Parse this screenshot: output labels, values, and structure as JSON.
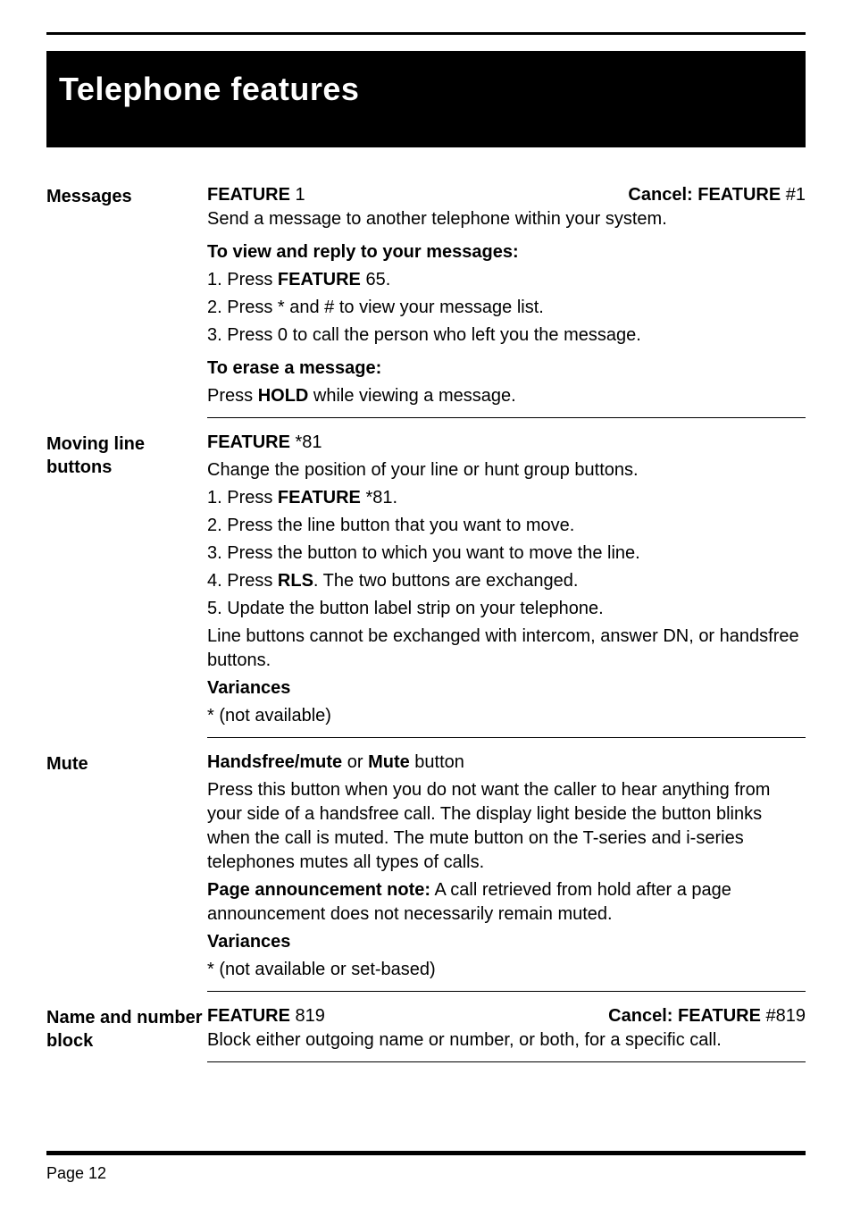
{
  "title": "Telephone  features",
  "sections": {
    "messages": {
      "label": "Messages",
      "feature": "FEATURE",
      "feature_num": " 1",
      "cancel": "Cancel: FEATURE",
      "cancel_num": " #1",
      "intro": "Send a message to another telephone within your system.",
      "sub1": "To view and reply to your messages:",
      "step1a": "1.  Press ",
      "step1b": "FEATURE",
      "step1c": " 65.",
      "step2": "2.  Press * and # to view your message list.",
      "step3": "3.  Press 0 to call the person who left you the message.",
      "sub2": "To erase a message:",
      "erase_a": "Press ",
      "erase_b": "HOLD",
      "erase_c": " while viewing a message."
    },
    "moving": {
      "label": "Moving line buttons",
      "feature": "FEATURE",
      "feature_num": " *81",
      "line1": "Change the position of your line or hunt group buttons.",
      "step1a": "1.  Press ",
      "step1b": "FEATURE",
      "step1c": " *81.",
      "step2": "2.  Press the line button that you want to move.",
      "step3": "3.  Press the button to which you want to move the line.",
      "step4a": "4.  Press ",
      "step4b": "RLS",
      "step4c": ". The two buttons are exchanged.",
      "step5": "5.  Update the button label strip on your telephone.",
      "note": "Line buttons cannot be exchanged with intercom, answer DN, or handsfree buttons.",
      "var_h": "Variances",
      "var_t": "* (not available)"
    },
    "mute": {
      "label": "Mute",
      "h1a": "Handsfree/mute",
      "h1b": " or ",
      "h1c": "Mute",
      "h1d": " button",
      "p1": "Press this button when you do not want the caller to hear anything from your side of a handsfree call. The display light beside the button blinks when the call is muted. The mute button on the T-series and i-series telephones mutes all types of calls.",
      "p2a": "Page announcement note:",
      "p2b": " A call retrieved from hold after a page announcement does not necessarily remain muted.",
      "var_h": "Variances",
      "var_t": "* (not available or set-based)"
    },
    "nameblock": {
      "label": "Name and number block",
      "feature": "FEATURE",
      "feature_num": " 819",
      "cancel": "Cancel: FEATURE",
      "cancel_num": " #819",
      "p1": "Block either outgoing name or number, or both, for a specific call."
    }
  },
  "page": "Page 12"
}
